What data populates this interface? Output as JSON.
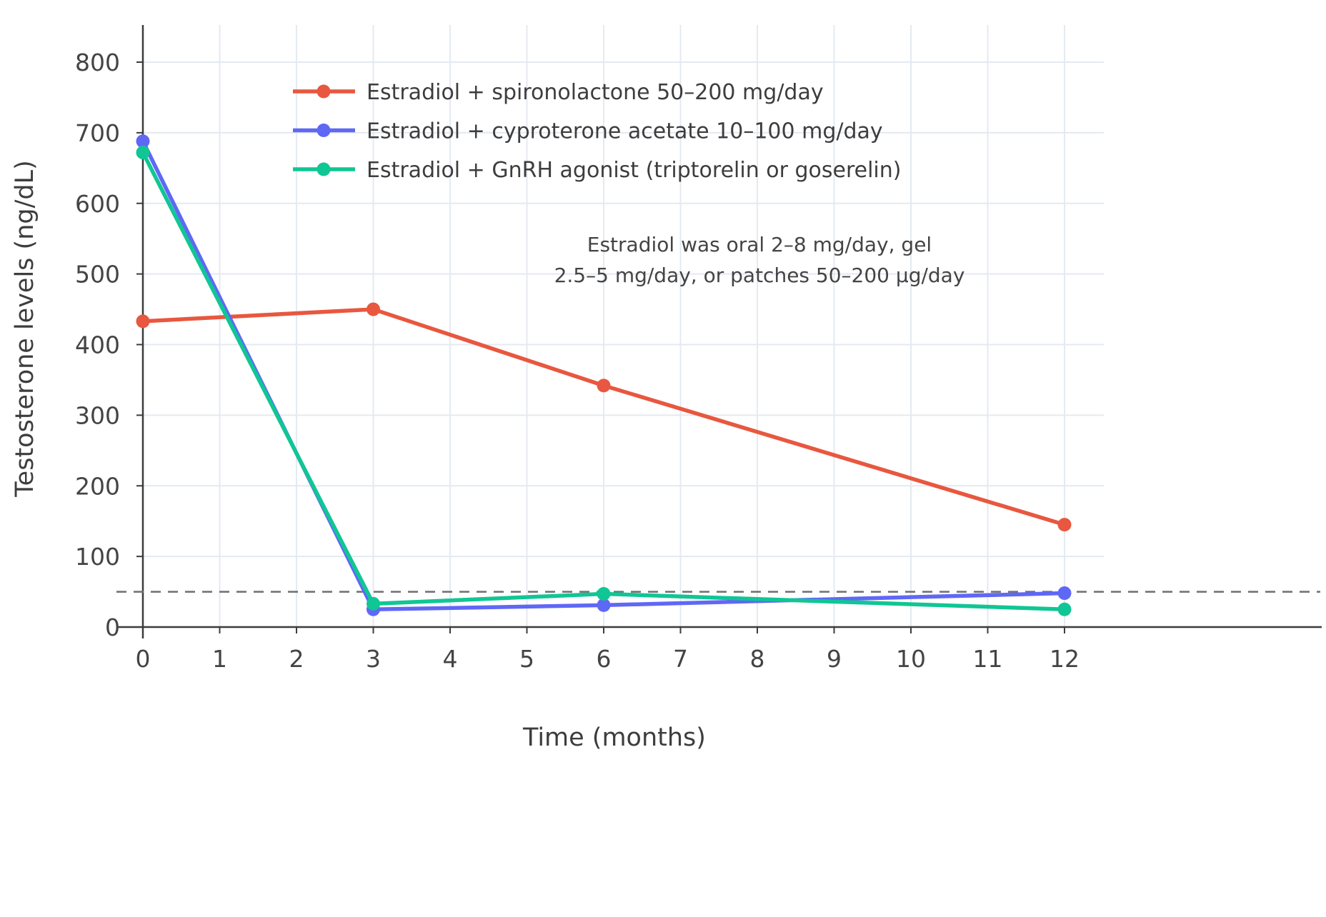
{
  "chart_data": {
    "type": "line",
    "title": "",
    "xlabel": "Time (months)",
    "ylabel": "Testosterone levels (ng/dL)",
    "x_ticks": [
      0,
      1,
      2,
      3,
      4,
      5,
      6,
      7,
      8,
      9,
      10,
      11,
      12
    ],
    "y_ticks": [
      0,
      100,
      200,
      300,
      400,
      500,
      600,
      700,
      800
    ],
    "xlim": [
      0,
      12.5
    ],
    "ylim": [
      0,
      852
    ],
    "grid": true,
    "legend_position": "inside-top-left",
    "x": [
      0,
      3,
      6,
      12
    ],
    "series": [
      {
        "name": "Estradiol + spironolactone 50–200 mg/day",
        "color": "#e8573f",
        "values": [
          433,
          450,
          342,
          145
        ]
      },
      {
        "name": "Estradiol + cyproterone acetate 10–100 mg/day",
        "color": "#5f68f5",
        "values": [
          688,
          25,
          31,
          48
        ]
      },
      {
        "name": "Estradiol + GnRH agonist (triptorelin or goserelin)",
        "color": "#10c694",
        "values": [
          672,
          33,
          47,
          25
        ]
      }
    ],
    "threshold": {
      "y": 50,
      "style": "dashed",
      "color": "#6e6e6e"
    },
    "annotation_lines": [
      "Estradiol was oral 2–8 mg/day, gel",
      "2.5–5 mg/day, or patches 50–200 µg/day"
    ],
    "colors": {
      "axis": "#3c3c3c",
      "grid": "#e4eaf1",
      "text": "#444444",
      "background": "#ffffff"
    }
  }
}
